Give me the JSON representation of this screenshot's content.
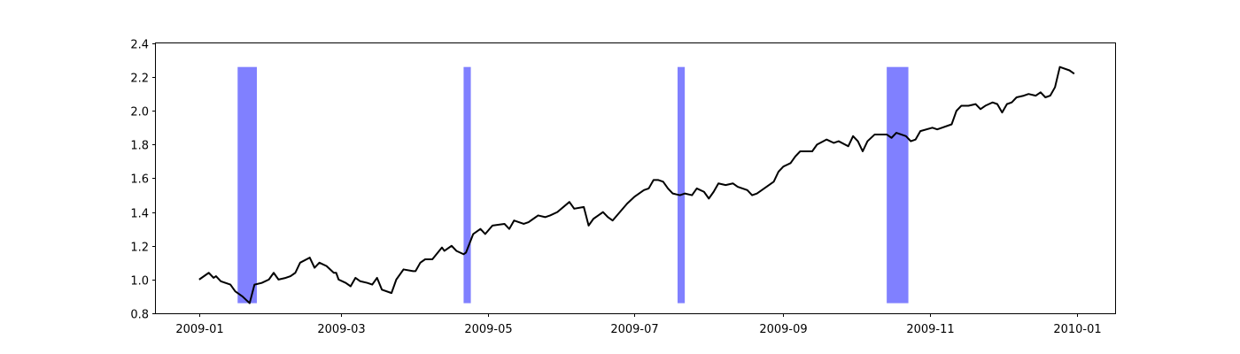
{
  "chart_data": {
    "type": "line",
    "title": "",
    "xlabel": "",
    "ylabel": "",
    "x_axis": "date",
    "xlim": [
      "2008-12-14",
      "2010-01-17"
    ],
    "ylim": [
      0.8,
      2.4
    ],
    "grid": false,
    "legend": "none",
    "x_ticks": [
      {
        "value": "2009-01-01",
        "label": "2009-01"
      },
      {
        "value": "2009-03-01",
        "label": "2009-03"
      },
      {
        "value": "2009-05-01",
        "label": "2009-05"
      },
      {
        "value": "2009-07-01",
        "label": "2009-07"
      },
      {
        "value": "2009-09-01",
        "label": "2009-09"
      },
      {
        "value": "2009-11-01",
        "label": "2009-11"
      },
      {
        "value": "2010-01-01",
        "label": "2010-01"
      }
    ],
    "y_ticks": [
      {
        "value": 0.8,
        "label": "0.8"
      },
      {
        "value": 1.0,
        "label": "1.0"
      },
      {
        "value": 1.2,
        "label": "1.2"
      },
      {
        "value": 1.4,
        "label": "1.4"
      },
      {
        "value": 1.6,
        "label": "1.6"
      },
      {
        "value": 1.8,
        "label": "1.8"
      },
      {
        "value": 2.0,
        "label": "2.0"
      },
      {
        "value": 2.2,
        "label": "2.2"
      },
      {
        "value": 2.4,
        "label": "2.4"
      }
    ],
    "series": [
      {
        "color": "#000000",
        "points": [
          [
            "2009-01-01",
            1.0
          ],
          [
            "2009-01-05",
            1.04
          ],
          [
            "2009-01-07",
            1.01
          ],
          [
            "2009-01-08",
            1.02
          ],
          [
            "2009-01-10",
            0.99
          ],
          [
            "2009-01-14",
            0.97
          ],
          [
            "2009-01-16",
            0.93
          ],
          [
            "2009-01-19",
            0.9
          ],
          [
            "2009-01-22",
            0.86
          ],
          [
            "2009-01-24",
            0.97
          ],
          [
            "2009-01-27",
            0.98
          ],
          [
            "2009-01-30",
            1.0
          ],
          [
            "2009-02-01",
            1.04
          ],
          [
            "2009-02-03",
            1.0
          ],
          [
            "2009-02-06",
            1.01
          ],
          [
            "2009-02-08",
            1.02
          ],
          [
            "2009-02-10",
            1.04
          ],
          [
            "2009-02-12",
            1.1
          ],
          [
            "2009-02-16",
            1.13
          ],
          [
            "2009-02-18",
            1.07
          ],
          [
            "2009-02-20",
            1.1
          ],
          [
            "2009-02-23",
            1.08
          ],
          [
            "2009-02-26",
            1.04
          ],
          [
            "2009-02-27",
            1.04
          ],
          [
            "2009-02-28",
            1.0
          ],
          [
            "2009-03-03",
            0.98
          ],
          [
            "2009-03-05",
            0.96
          ],
          [
            "2009-03-07",
            1.01
          ],
          [
            "2009-03-09",
            0.99
          ],
          [
            "2009-03-12",
            0.98
          ],
          [
            "2009-03-14",
            0.97
          ],
          [
            "2009-03-16",
            1.01
          ],
          [
            "2009-03-18",
            0.94
          ],
          [
            "2009-03-22",
            0.92
          ],
          [
            "2009-03-24",
            1.0
          ],
          [
            "2009-03-27",
            1.06
          ],
          [
            "2009-03-31",
            1.05
          ],
          [
            "2009-04-01",
            1.05
          ],
          [
            "2009-04-03",
            1.1
          ],
          [
            "2009-04-05",
            1.12
          ],
          [
            "2009-04-08",
            1.12
          ],
          [
            "2009-04-12",
            1.19
          ],
          [
            "2009-04-13",
            1.17
          ],
          [
            "2009-04-16",
            1.2
          ],
          [
            "2009-04-18",
            1.17
          ],
          [
            "2009-04-21",
            1.15
          ],
          [
            "2009-04-22",
            1.16
          ],
          [
            "2009-04-25",
            1.27
          ],
          [
            "2009-04-28",
            1.3
          ],
          [
            "2009-04-30",
            1.27
          ],
          [
            "2009-05-03",
            1.32
          ],
          [
            "2009-05-08",
            1.33
          ],
          [
            "2009-05-10",
            1.3
          ],
          [
            "2009-05-12",
            1.35
          ],
          [
            "2009-05-16",
            1.33
          ],
          [
            "2009-05-18",
            1.34
          ],
          [
            "2009-05-20",
            1.36
          ],
          [
            "2009-05-22",
            1.38
          ],
          [
            "2009-05-25",
            1.37
          ],
          [
            "2009-05-27",
            1.38
          ],
          [
            "2009-05-30",
            1.4
          ],
          [
            "2009-06-04",
            1.46
          ],
          [
            "2009-06-06",
            1.42
          ],
          [
            "2009-06-10",
            1.43
          ],
          [
            "2009-06-12",
            1.32
          ],
          [
            "2009-06-14",
            1.36
          ],
          [
            "2009-06-16",
            1.38
          ],
          [
            "2009-06-18",
            1.4
          ],
          [
            "2009-06-20",
            1.37
          ],
          [
            "2009-06-22",
            1.35
          ],
          [
            "2009-06-25",
            1.4
          ],
          [
            "2009-06-28",
            1.45
          ],
          [
            "2009-07-01",
            1.49
          ],
          [
            "2009-07-05",
            1.53
          ],
          [
            "2009-07-07",
            1.54
          ],
          [
            "2009-07-09",
            1.59
          ],
          [
            "2009-07-11",
            1.59
          ],
          [
            "2009-07-13",
            1.58
          ],
          [
            "2009-07-15",
            1.54
          ],
          [
            "2009-07-17",
            1.51
          ],
          [
            "2009-07-20",
            1.5
          ],
          [
            "2009-07-22",
            1.51
          ],
          [
            "2009-07-25",
            1.5
          ],
          [
            "2009-07-27",
            1.54
          ],
          [
            "2009-07-30",
            1.52
          ],
          [
            "2009-08-01",
            1.48
          ],
          [
            "2009-08-03",
            1.52
          ],
          [
            "2009-08-05",
            1.57
          ],
          [
            "2009-08-08",
            1.56
          ],
          [
            "2009-08-11",
            1.57
          ],
          [
            "2009-08-13",
            1.55
          ],
          [
            "2009-08-17",
            1.53
          ],
          [
            "2009-08-19",
            1.5
          ],
          [
            "2009-08-21",
            1.51
          ],
          [
            "2009-08-25",
            1.55
          ],
          [
            "2009-08-28",
            1.58
          ],
          [
            "2009-08-30",
            1.64
          ],
          [
            "2009-09-01",
            1.67
          ],
          [
            "2009-09-04",
            1.69
          ],
          [
            "2009-09-06",
            1.73
          ],
          [
            "2009-09-08",
            1.76
          ],
          [
            "2009-09-13",
            1.76
          ],
          [
            "2009-09-15",
            1.8
          ],
          [
            "2009-09-19",
            1.83
          ],
          [
            "2009-09-22",
            1.81
          ],
          [
            "2009-09-24",
            1.82
          ],
          [
            "2009-09-28",
            1.79
          ],
          [
            "2009-09-30",
            1.85
          ],
          [
            "2009-10-02",
            1.82
          ],
          [
            "2009-10-04",
            1.76
          ],
          [
            "2009-10-06",
            1.82
          ],
          [
            "2009-10-09",
            1.86
          ],
          [
            "2009-10-14",
            1.86
          ],
          [
            "2009-10-16",
            1.84
          ],
          [
            "2009-10-18",
            1.87
          ],
          [
            "2009-10-22",
            1.85
          ],
          [
            "2009-10-24",
            1.82
          ],
          [
            "2009-10-26",
            1.83
          ],
          [
            "2009-10-28",
            1.88
          ],
          [
            "2009-11-02",
            1.9
          ],
          [
            "2009-11-04",
            1.89
          ],
          [
            "2009-11-06",
            1.9
          ],
          [
            "2009-11-10",
            1.92
          ],
          [
            "2009-11-12",
            2.0
          ],
          [
            "2009-11-14",
            2.03
          ],
          [
            "2009-11-17",
            2.03
          ],
          [
            "2009-11-20",
            2.04
          ],
          [
            "2009-11-22",
            2.01
          ],
          [
            "2009-11-24",
            2.03
          ],
          [
            "2009-11-27",
            2.05
          ],
          [
            "2009-11-29",
            2.04
          ],
          [
            "2009-12-01",
            1.99
          ],
          [
            "2009-12-03",
            2.04
          ],
          [
            "2009-12-05",
            2.05
          ],
          [
            "2009-12-07",
            2.08
          ],
          [
            "2009-12-10",
            2.09
          ],
          [
            "2009-12-12",
            2.1
          ],
          [
            "2009-12-15",
            2.09
          ],
          [
            "2009-12-17",
            2.11
          ],
          [
            "2009-12-19",
            2.08
          ],
          [
            "2009-12-21",
            2.09
          ],
          [
            "2009-12-23",
            2.14
          ],
          [
            "2009-12-25",
            2.26
          ],
          [
            "2009-12-29",
            2.24
          ],
          [
            "2009-12-31",
            2.22
          ]
        ]
      }
    ],
    "shaded_regions": [
      {
        "start": "2009-01-17",
        "end": "2009-01-25",
        "color": "#8080ff"
      },
      {
        "start": "2009-04-21",
        "end": "2009-04-24",
        "color": "#8080ff"
      },
      {
        "start": "2009-07-19",
        "end": "2009-07-22",
        "color": "#8080ff"
      },
      {
        "start": "2009-10-14",
        "end": "2009-10-23",
        "color": "#8080ff"
      }
    ]
  }
}
